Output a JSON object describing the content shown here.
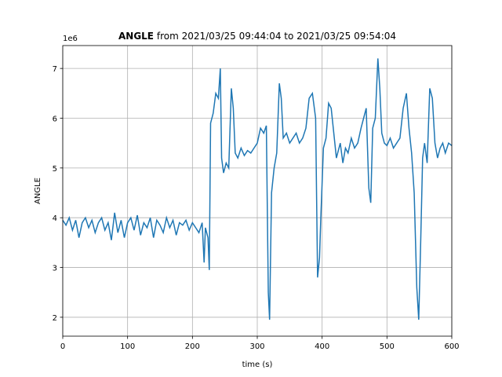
{
  "chart_data": {
    "type": "line",
    "title": {
      "bold": "ANGLE",
      "text": "from 2021/03/25 09:44:04 to 2021/03/25 09:54:04"
    },
    "xlabel": "time (s)",
    "ylabel": "ANGLE",
    "y_offset_text": "1e6",
    "xlim": [
      0,
      600
    ],
    "ylim": [
      1.62,
      7.46
    ],
    "xticks": [
      0,
      100,
      200,
      300,
      400,
      500,
      600
    ],
    "yticks": [
      2,
      3,
      4,
      5,
      6,
      7
    ],
    "grid": true,
    "x": [
      0,
      5,
      10,
      15,
      20,
      25,
      30,
      35,
      40,
      45,
      50,
      55,
      60,
      65,
      70,
      75,
      80,
      85,
      90,
      95,
      100,
      105,
      110,
      115,
      120,
      125,
      130,
      135,
      140,
      145,
      150,
      155,
      160,
      165,
      170,
      175,
      180,
      185,
      190,
      195,
      200,
      205,
      210,
      215,
      218,
      220,
      224,
      226,
      228,
      232,
      236,
      240,
      243,
      245,
      248,
      252,
      256,
      260,
      263,
      266,
      270,
      275,
      280,
      285,
      290,
      295,
      300,
      305,
      310,
      314,
      317,
      319,
      322,
      326,
      330,
      334,
      337,
      340,
      345,
      350,
      355,
      360,
      365,
      370,
      375,
      380,
      385,
      390,
      393,
      396,
      398,
      402,
      406,
      410,
      414,
      418,
      422,
      428,
      432,
      436,
      440,
      445,
      450,
      455,
      460,
      464,
      468,
      472,
      475,
      478,
      482,
      486,
      489,
      492,
      496,
      500,
      505,
      510,
      515,
      520,
      525,
      530,
      534,
      538,
      542,
      546,
      549,
      552,
      555,
      558,
      562,
      566,
      570,
      574,
      578,
      582,
      586,
      590,
      595,
      600
    ],
    "series": [
      {
        "name": "ANGLE",
        "color": "#1f77b4",
        "values": [
          3.95,
          3.85,
          4.0,
          3.75,
          3.95,
          3.6,
          3.9,
          4.0,
          3.8,
          3.95,
          3.7,
          3.9,
          4.0,
          3.75,
          3.9,
          3.55,
          4.1,
          3.7,
          3.95,
          3.6,
          3.9,
          4.0,
          3.75,
          4.05,
          3.65,
          3.9,
          3.8,
          4.0,
          3.6,
          3.95,
          3.85,
          3.7,
          4.0,
          3.8,
          3.95,
          3.65,
          3.9,
          3.85,
          3.95,
          3.75,
          3.9,
          3.8,
          3.7,
          3.9,
          3.1,
          3.8,
          3.6,
          2.95,
          5.9,
          6.1,
          6.5,
          6.4,
          7.0,
          5.2,
          4.9,
          5.1,
          5.0,
          6.6,
          6.2,
          5.3,
          5.2,
          5.4,
          5.25,
          5.35,
          5.3,
          5.4,
          5.5,
          5.8,
          5.7,
          5.85,
          2.5,
          1.95,
          4.5,
          5.0,
          5.3,
          6.7,
          6.4,
          5.6,
          5.7,
          5.5,
          5.6,
          5.7,
          5.5,
          5.6,
          5.8,
          6.4,
          6.5,
          6.0,
          2.8,
          3.2,
          4.0,
          5.4,
          5.6,
          6.3,
          6.2,
          5.7,
          5.2,
          5.5,
          5.1,
          5.4,
          5.3,
          5.6,
          5.4,
          5.5,
          5.8,
          6.0,
          6.2,
          4.6,
          4.3,
          5.8,
          6.0,
          7.2,
          6.6,
          5.7,
          5.5,
          5.45,
          5.6,
          5.4,
          5.5,
          5.6,
          6.2,
          6.5,
          5.8,
          5.3,
          4.5,
          2.6,
          1.95,
          3.5,
          5.2,
          5.5,
          5.1,
          6.6,
          6.4,
          5.5,
          5.2,
          5.4,
          5.5,
          5.3,
          5.5,
          5.45
        ]
      }
    ]
  }
}
